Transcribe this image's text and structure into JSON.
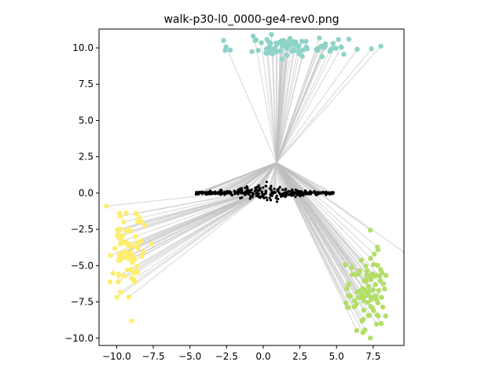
{
  "chart_data": {
    "type": "scatter",
    "title": "walk-p30-l0_0000-ge4-rev0.png",
    "xlabel": "",
    "ylabel": "",
    "xlim": [
      -11.2,
      9.6
    ],
    "ylim": [
      -10.5,
      11.3
    ],
    "grid": false,
    "x_ticks": [
      -10.0,
      -7.5,
      -5.0,
      -2.5,
      0.0,
      2.5,
      5.0,
      7.5
    ],
    "y_ticks": [
      -10.0,
      -7.5,
      -5.0,
      -2.5,
      0.0,
      2.5,
      5.0,
      7.5,
      10.0
    ],
    "x_tick_labels": [
      "−10.0",
      "−7.5",
      "−5.0",
      "−2.5",
      "0.0",
      "2.5",
      "5.0",
      "7.5"
    ],
    "y_tick_labels": [
      "−10.0",
      "−7.5",
      "−5.0",
      "−2.5",
      "0.0",
      "2.5",
      "5.0",
      "7.5",
      "10.0"
    ],
    "colors": {
      "teal_cluster": "#8dd3c7",
      "yellow_cluster": "#ffed6f",
      "green_cluster": "#b3de69",
      "center_cluster": "#000000",
      "edges": "#bfbfbf"
    },
    "clusters": [
      {
        "color_key": "teal_cluster",
        "center": [
          2.0,
          10.1
        ],
        "spread": [
          3.8,
          0.55
        ],
        "count": 90
      },
      {
        "color_key": "yellow_cluster",
        "center": [
          -9.3,
          -4.0
        ],
        "spread": [
          1.1,
          2.3
        ],
        "count": 80
      },
      {
        "color_key": "green_cluster",
        "center": [
          7.2,
          -6.8
        ],
        "spread": [
          1.1,
          2.2
        ],
        "count": 90
      },
      {
        "color_key": "center_cluster",
        "center": [
          0.0,
          0.0
        ],
        "spread": [
          2.4,
          0.12
        ],
        "count": 400
      }
    ],
    "center_span": [
      -4.6,
      4.8
    ],
    "edge_hubs": [
      [
        0.9,
        2.1
      ],
      [
        0.3,
        0.3
      ]
    ]
  }
}
